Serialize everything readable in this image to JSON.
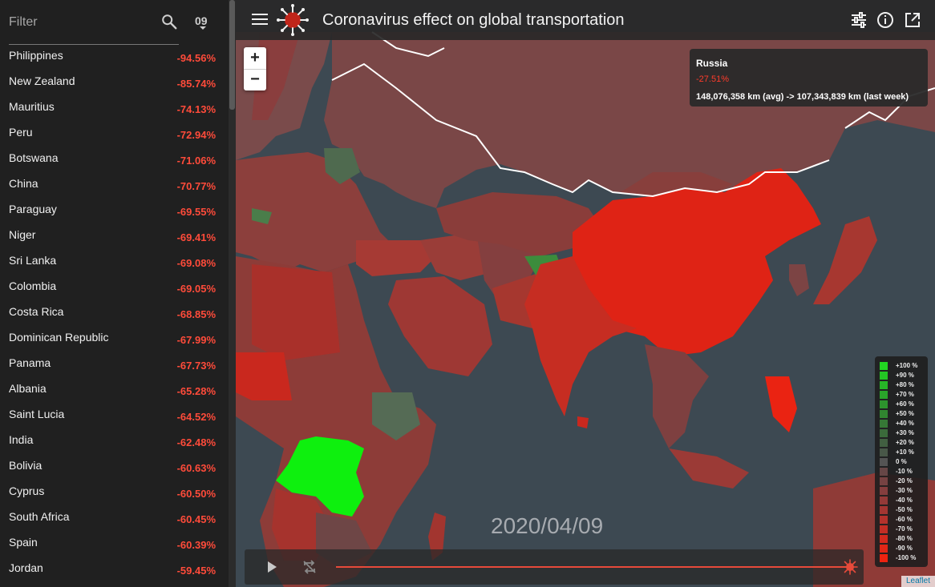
{
  "sidebar": {
    "filter_placeholder": "Filter",
    "day_value": "09",
    "countries": [
      {
        "name": "Philippines",
        "value": "-94.56%"
      },
      {
        "name": "New Zealand",
        "value": "-85.74%"
      },
      {
        "name": "Mauritius",
        "value": "-74.13%"
      },
      {
        "name": "Peru",
        "value": "-72.94%"
      },
      {
        "name": "Botswana",
        "value": "-71.06%"
      },
      {
        "name": "China",
        "value": "-70.77%"
      },
      {
        "name": "Paraguay",
        "value": "-69.55%"
      },
      {
        "name": "Niger",
        "value": "-69.41%"
      },
      {
        "name": "Sri Lanka",
        "value": "-69.08%"
      },
      {
        "name": "Colombia",
        "value": "-69.05%"
      },
      {
        "name": "Costa Rica",
        "value": "-68.85%"
      },
      {
        "name": "Dominican Republic",
        "value": "-67.99%"
      },
      {
        "name": "Panama",
        "value": "-67.73%"
      },
      {
        "name": "Albania",
        "value": "-65.28%"
      },
      {
        "name": "Saint Lucia",
        "value": "-64.52%"
      },
      {
        "name": "India",
        "value": "-62.48%"
      },
      {
        "name": "Bolivia",
        "value": "-60.63%"
      },
      {
        "name": "Cyprus",
        "value": "-60.50%"
      },
      {
        "name": "South Africa",
        "value": "-60.45%"
      },
      {
        "name": "Spain",
        "value": "-60.39%"
      },
      {
        "name": "Jordan",
        "value": "-59.45%"
      }
    ]
  },
  "header": {
    "title": "Coronavirus effect on global transportation",
    "icons": [
      "menu-icon",
      "virus-logo",
      "tune-icon",
      "info-icon",
      "open-external-icon"
    ]
  },
  "map": {
    "zoom_in": "+",
    "zoom_out": "−",
    "tooltip": {
      "country": "Russia",
      "change": "-27.51%",
      "distance": "148,076,358 km (avg) -> 107,343,839 km (last week)"
    },
    "legend": [
      {
        "label": "+100 %",
        "color": "#22d622"
      },
      {
        "label": "+90 %",
        "color": "#24c524"
      },
      {
        "label": "+80 %",
        "color": "#27b527"
      },
      {
        "label": "+70 %",
        "color": "#2aa42a"
      },
      {
        "label": "+60 %",
        "color": "#2d942d"
      },
      {
        "label": "+50 %",
        "color": "#318530"
      },
      {
        "label": "+40 %",
        "color": "#367836"
      },
      {
        "label": "+30 %",
        "color": "#3b6b3b"
      },
      {
        "label": "+20 %",
        "color": "#415f41"
      },
      {
        "label": "+10 %",
        "color": "#485748"
      },
      {
        "label": "0 %",
        "color": "#545454"
      },
      {
        "label": "-10 %",
        "color": "#664646"
      },
      {
        "label": "-20 %",
        "color": "#764242"
      },
      {
        "label": "-30 %",
        "color": "#853e3e"
      },
      {
        "label": "-40 %",
        "color": "#943a38"
      },
      {
        "label": "-50 %",
        "color": "#a33632"
      },
      {
        "label": "-60 %",
        "color": "#b3322c"
      },
      {
        "label": "-70 %",
        "color": "#c22e25"
      },
      {
        "label": "-80 %",
        "color": "#d12a1e"
      },
      {
        "label": "-90 %",
        "color": "#e02717"
      },
      {
        "label": "-100 %",
        "color": "#ef2310"
      }
    ],
    "date": "2020/04/09",
    "attribution": "Leaflet"
  },
  "colors": {
    "accent": "#e74a3a",
    "negative_value": "#ff4b3a",
    "map_background": "#3d4952",
    "highlight_green": "#0ef00e"
  }
}
